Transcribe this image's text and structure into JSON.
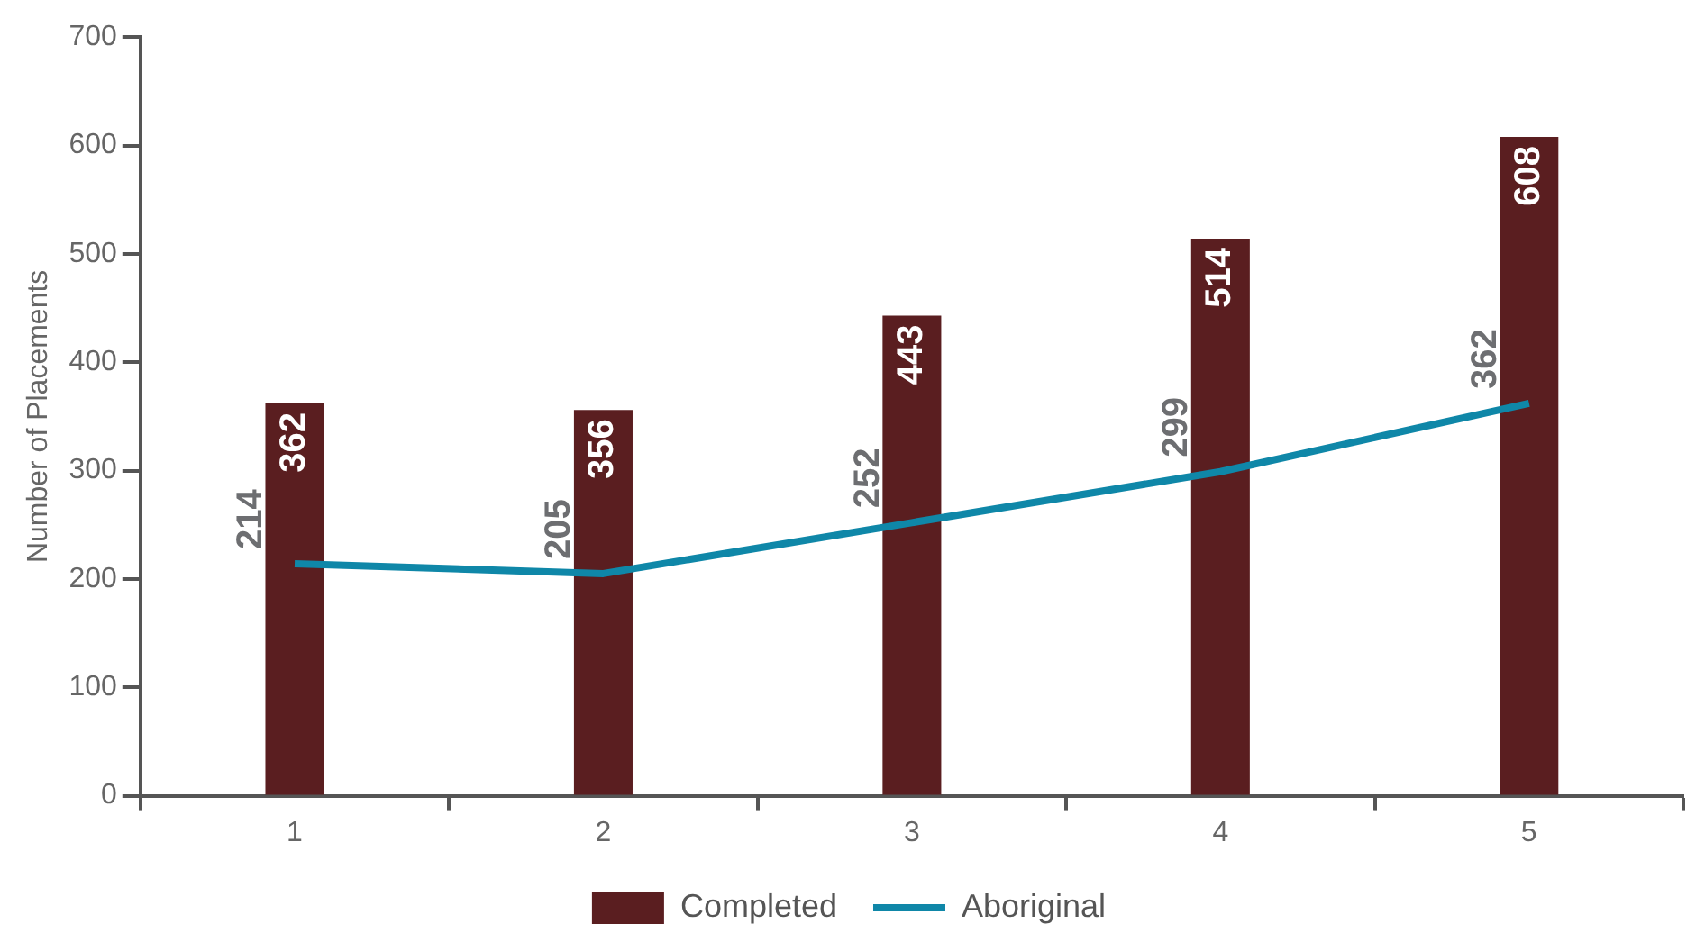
{
  "chart_data": {
    "type": "bar",
    "ylabel": "Number of Placements",
    "categories": [
      "1",
      "2",
      "3",
      "4",
      "5"
    ],
    "series": [
      {
        "name": "Completed",
        "color": "#5a1e20",
        "values": [
          362,
          356,
          443,
          514,
          608
        ]
      },
      {
        "name": "Aboriginal",
        "type": "line",
        "color": "#0f87a8",
        "values": [
          214,
          205,
          252,
          299,
          362
        ]
      }
    ],
    "ylim": [
      0,
      700
    ],
    "yticks": [
      0,
      100,
      200,
      300,
      400,
      500,
      600,
      700
    ],
    "grid": false,
    "legend": "bottom",
    "data_labels": true
  }
}
